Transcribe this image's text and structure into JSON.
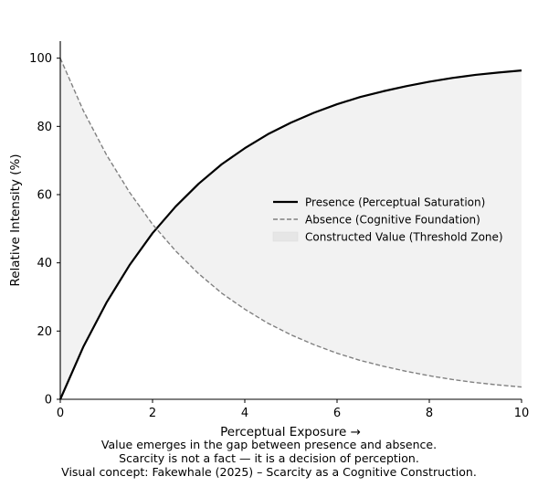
{
  "chart_data": {
    "type": "line",
    "xlabel": "Perceptual Exposure →",
    "ylabel": "Relative Intensity (%)",
    "xlim": [
      0,
      10
    ],
    "ylim": [
      0,
      105
    ],
    "xticks": [
      0,
      2,
      4,
      6,
      8,
      10
    ],
    "yticks": [
      0,
      20,
      40,
      60,
      80,
      100
    ],
    "grid": false,
    "legend_position": "center-right",
    "series": [
      {
        "name": "Presence (Perceptual Saturation)",
        "style": "solid",
        "color": "#000000",
        "x": [
          0,
          0.5,
          1,
          1.5,
          2,
          2.5,
          3,
          3.5,
          4,
          4.5,
          5,
          5.5,
          6,
          6.5,
          7,
          7.5,
          8,
          8.5,
          9,
          9.5,
          10
        ],
        "values": [
          0,
          15.4,
          28.3,
          39.3,
          48.7,
          56.5,
          63.2,
          68.9,
          73.6,
          77.7,
          81.1,
          84.0,
          86.5,
          88.6,
          90.3,
          91.8,
          93.1,
          94.2,
          95.1,
          95.8,
          96.4
        ]
      },
      {
        "name": "Absence (Cognitive Foundation)",
        "style": "dashed",
        "color": "#808080",
        "x": [
          0,
          0.5,
          1,
          1.5,
          2,
          2.5,
          3,
          3.5,
          4,
          4.5,
          5,
          5.5,
          6,
          6.5,
          7,
          7.5,
          8,
          8.5,
          9,
          9.5,
          10
        ],
        "values": [
          100,
          84.6,
          71.7,
          60.7,
          51.3,
          43.5,
          36.8,
          31.1,
          26.4,
          22.3,
          18.9,
          16.0,
          13.5,
          11.4,
          9.7,
          8.2,
          6.9,
          5.8,
          4.9,
          4.2,
          3.6
        ]
      }
    ],
    "fill_between": {
      "name": "Constructed Value (Threshold Zone)",
      "color": "#f2f2f2",
      "legend_color": "#e6e6e6"
    }
  },
  "caption": {
    "line1": "Value emerges in the gap between presence and absence.",
    "line2": "Scarcity is not a fact — it is a decision of perception.",
    "line3": "Visual concept: Fakewhale (2025) – Scarcity as a Cognitive Construction."
  }
}
